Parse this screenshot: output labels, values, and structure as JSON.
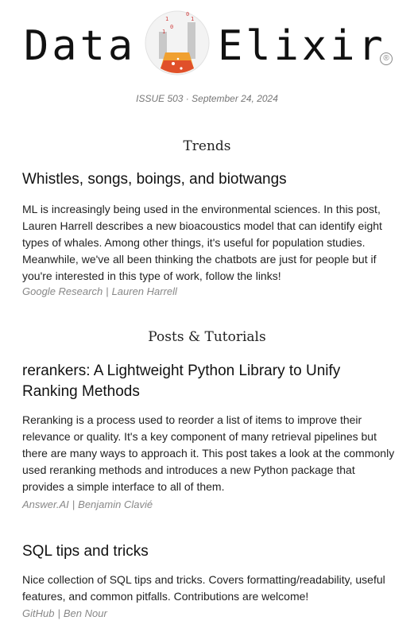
{
  "header": {
    "logo_left": "Data",
    "logo_right": "Elixir",
    "registered_mark": "®",
    "issue_line": "ISSUE 503 · September 24, 2024"
  },
  "sections": [
    {
      "heading": "Trends",
      "articles": [
        {
          "title": "Whistles, songs, boings, and biotwangs",
          "body": "ML is increasingly being used in the environmental sciences. In this post, Lauren Harrell describes a new bioacoustics model that can identify eight types of whales. Among other things, it's useful for population studies. Meanwhile, we've all been thinking the chatbots are just for people but if you're interested in this type of work, follow the links!",
          "source": "Google Research",
          "separator": "|",
          "author": "Lauren Harrell"
        }
      ]
    },
    {
      "heading": "Posts & Tutorials",
      "articles": [
        {
          "title": "rerankers: A Lightweight Python Library to Unify Ranking Methods",
          "body": "Reranking is a process used to reorder a list of items to improve their relevance or quality. It's a key component of many retrieval pipelines but there are many ways to approach it. This post takes a look at the commonly used reranking methods and introduces a new Python package that provides a simple interface to all of them.",
          "source": "Answer.AI",
          "separator": "|",
          "author": "Benjamin Clavié"
        },
        {
          "title": "SQL tips and tricks",
          "body": "Nice collection of SQL tips and tricks. Covers formatting/readability, useful features, and common pitfalls. Contributions are welcome!",
          "source": "GitHub",
          "separator": "|",
          "author": "Ben Nour"
        }
      ]
    }
  ],
  "colors": {
    "text": "#222222",
    "meta": "#888888",
    "flask_red": "#e0502a",
    "flask_orange": "#f0a030",
    "flask_gray": "#b0b0b0"
  }
}
